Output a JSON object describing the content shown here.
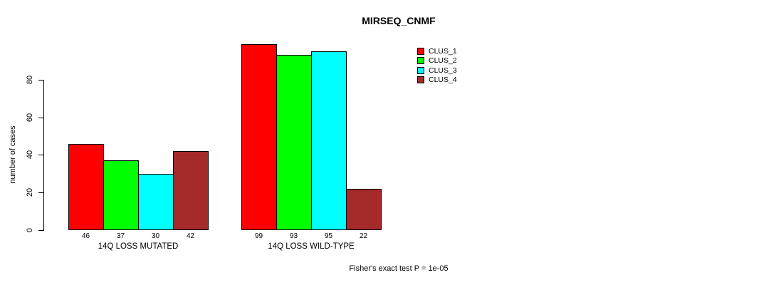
{
  "title": "MIRSEQ_CNMF",
  "footer_note": "Fisher's exact test P = 1e-05",
  "chart_data": {
    "type": "bar",
    "title": "MIRSEQ_CNMF",
    "xlabel": "",
    "ylabel": "number of cases",
    "ylim": [
      0,
      105
    ],
    "yticks": [
      0,
      20,
      40,
      60,
      80
    ],
    "grid": false,
    "legend_position": "top-right",
    "categories": [
      "14Q LOSS MUTATED",
      "14Q LOSS WILD-TYPE"
    ],
    "series": [
      {
        "name": "CLUS_1",
        "color": "#FF0000",
        "values": [
          46,
          99
        ]
      },
      {
        "name": "CLUS_2",
        "color": "#00FF00",
        "values": [
          37,
          93
        ]
      },
      {
        "name": "CLUS_3",
        "color": "#00FFFF",
        "values": [
          30,
          95
        ]
      },
      {
        "name": "CLUS_4",
        "color": "#A52A2A",
        "values": [
          42,
          22
        ]
      }
    ],
    "bar_value_labels": [
      [
        46,
        37,
        30,
        42
      ],
      [
        99,
        93,
        95,
        22
      ]
    ],
    "annotation": "Fisher's exact test P = 1e-05"
  }
}
